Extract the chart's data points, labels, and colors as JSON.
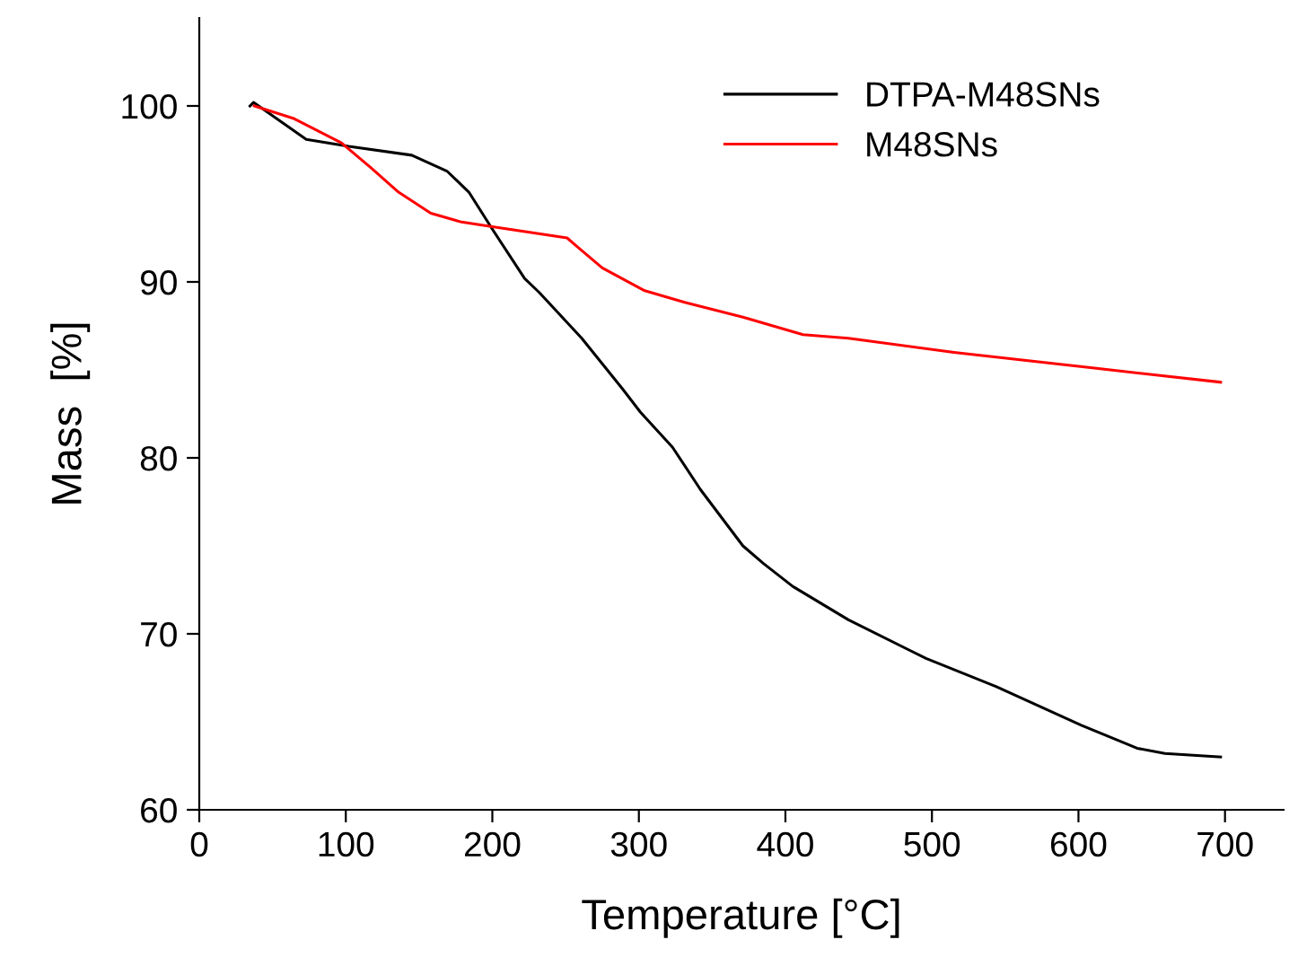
{
  "chart_data": {
    "type": "line",
    "xlabel": "Temperature [°C]",
    "ylabel": "Mass  [%]",
    "xlim": [
      0,
      740
    ],
    "ylim": [
      60,
      105
    ],
    "xticks": [
      0,
      100,
      200,
      300,
      400,
      500,
      600,
      700
    ],
    "yticks": [
      60,
      70,
      80,
      90,
      100
    ],
    "grid": false,
    "legend": "top right",
    "marker": "none",
    "line_style": "solid",
    "series": [
      {
        "name": "DTPA-M48SNs",
        "color": "#000000",
        "x": [
          34.6,
          37,
          73,
          102,
          145,
          169,
          184,
          200,
          222,
          232,
          261,
          289,
          301,
          323,
          342,
          371,
          385,
          405,
          443,
          496,
          544,
          602,
          640,
          659,
          697
        ],
        "values": [
          100.0,
          100.2,
          98.1,
          97.7,
          97.2,
          96.3,
          95.1,
          93.0,
          90.2,
          89.4,
          86.8,
          83.9,
          82.6,
          80.6,
          78.2,
          75.0,
          74.0,
          72.7,
          70.8,
          68.6,
          67.0,
          64.8,
          63.5,
          63.2,
          63.0
        ]
      },
      {
        "name": "M48SNs",
        "color": "#ff0000",
        "x": [
          37.5,
          64,
          97,
          117,
          136,
          158,
          179,
          203,
          251,
          258,
          275,
          304,
          333,
          371,
          412,
          443,
          515,
          611,
          697
        ],
        "values": [
          100.0,
          99.3,
          97.9,
          96.5,
          95.1,
          93.9,
          93.4,
          93.1,
          92.5,
          92.0,
          90.8,
          89.5,
          88.8,
          88.0,
          87.0,
          86.8,
          86.0,
          85.1,
          84.3
        ]
      }
    ]
  }
}
